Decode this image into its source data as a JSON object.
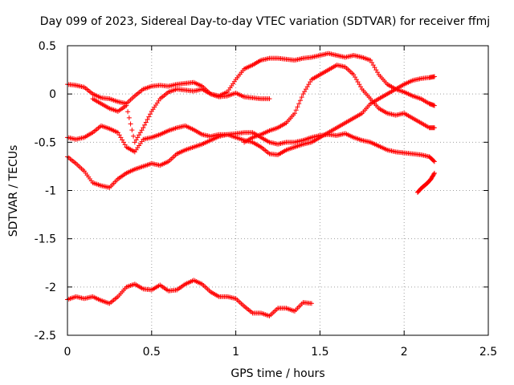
{
  "chart_data": {
    "type": "scatter",
    "title": "Day 099 of 2023, Sidereal Day-to-day VTEC variation (SDTVAR) for receiver ffmj",
    "xlabel": "GPS time / hours",
    "ylabel": "SDTVAR / TECUs",
    "xlim": [
      0,
      2.5
    ],
    "ylim": [
      -2.5,
      0.5
    ],
    "xticks": [
      "0",
      "0.5",
      "1",
      "1.5",
      "2",
      "2.5"
    ],
    "xtick_values": [
      0,
      0.5,
      1,
      1.5,
      2,
      2.5
    ],
    "yticks": [
      "-2.5",
      "-2",
      "-1.5",
      "-1",
      "-0.5",
      "0",
      "0.5"
    ],
    "ytick_values": [
      -2.5,
      -2,
      -1.5,
      -1,
      -0.5,
      0,
      0.5
    ],
    "grid": true,
    "marker": "+",
    "color": "#ff0000",
    "series": [
      {
        "x": [
          0,
          0.05,
          0.1,
          0.15,
          0.2,
          0.25,
          0.3,
          0.35,
          0.4,
          0.45,
          0.5,
          0.55,
          0.6,
          0.65,
          0.7,
          0.75,
          0.8,
          0.85,
          0.9,
          0.95,
          1.0,
          1.05,
          1.1,
          1.15,
          1.2
        ],
        "y": [
          0.1,
          0.09,
          0.07,
          0.0,
          -0.04,
          -0.05,
          -0.08,
          -0.1,
          -0.02,
          0.05,
          0.08,
          0.09,
          0.08,
          0.1,
          0.11,
          0.12,
          0.08,
          0.0,
          -0.03,
          -0.02,
          0.01,
          -0.03,
          -0.04,
          -0.05,
          -0.05
        ]
      },
      {
        "x": [
          0.15,
          0.2,
          0.25,
          0.3,
          0.35,
          0.4,
          0.45,
          0.5,
          0.55,
          0.6,
          0.65,
          0.7,
          0.75,
          0.8,
          0.85,
          0.9,
          0.95,
          1.0,
          1.05,
          1.1,
          1.15,
          1.2,
          1.25,
          1.3,
          1.35,
          1.4,
          1.45,
          1.5,
          1.55,
          1.6,
          1.65,
          1.7,
          1.75,
          1.8,
          1.85,
          1.9,
          1.95,
          2.0,
          2.05,
          2.1,
          2.15,
          2.18
        ],
        "y": [
          -0.05,
          -0.1,
          -0.15,
          -0.18,
          -0.12,
          -0.5,
          -0.35,
          -0.18,
          -0.05,
          0.02,
          0.05,
          0.04,
          0.03,
          0.05,
          0.0,
          -0.02,
          0.02,
          0.15,
          0.26,
          0.3,
          0.35,
          0.37,
          0.37,
          0.36,
          0.35,
          0.37,
          0.38,
          0.4,
          0.42,
          0.4,
          0.38,
          0.4,
          0.38,
          0.35,
          0.2,
          0.1,
          0.05,
          0.02,
          -0.02,
          -0.05,
          -0.1,
          -0.12
        ]
      },
      {
        "x": [
          0,
          0.05,
          0.1,
          0.15,
          0.2,
          0.25,
          0.3,
          0.35,
          0.4,
          0.45,
          0.5,
          0.55,
          0.6,
          0.65,
          0.7,
          0.75,
          0.8,
          0.85,
          0.9,
          0.95,
          1.0,
          1.05,
          1.1,
          1.15,
          1.2,
          1.25,
          1.3,
          1.35,
          1.4,
          1.45,
          1.5,
          1.55,
          1.6,
          1.65,
          1.7,
          1.75,
          1.8,
          1.85,
          1.9,
          1.95,
          2.0,
          2.05,
          2.1,
          2.15,
          2.18
        ],
        "y": [
          -0.45,
          -0.47,
          -0.45,
          -0.4,
          -0.33,
          -0.36,
          -0.4,
          -0.55,
          -0.6,
          -0.47,
          -0.45,
          -0.42,
          -0.38,
          -0.35,
          -0.33,
          -0.37,
          -0.42,
          -0.44,
          -0.42,
          -0.42,
          -0.41,
          -0.4,
          -0.4,
          -0.45,
          -0.5,
          -0.52,
          -0.5,
          -0.5,
          -0.48,
          -0.45,
          -0.43,
          -0.42,
          -0.43,
          -0.41,
          -0.45,
          -0.48,
          -0.5,
          -0.54,
          -0.58,
          -0.6,
          -0.61,
          -0.62,
          -0.63,
          -0.65,
          -0.7
        ]
      },
      {
        "x": [
          0,
          0.05,
          0.1,
          0.15,
          0.2,
          0.25,
          0.3,
          0.35,
          0.4,
          0.45,
          0.5,
          0.55,
          0.6,
          0.65,
          0.7,
          0.75,
          0.8,
          0.85,
          0.9,
          0.95,
          1.0,
          1.05,
          1.1,
          1.15,
          1.2,
          1.25,
          1.3,
          1.35,
          1.4,
          1.45,
          1.5,
          1.55,
          1.6,
          1.65,
          1.7,
          1.75,
          1.8,
          1.85,
          1.9,
          1.95,
          2.0,
          2.05,
          2.1,
          2.15,
          2.18
        ],
        "y": [
          -0.65,
          -0.72,
          -0.8,
          -0.92,
          -0.95,
          -0.97,
          -0.88,
          -0.82,
          -0.78,
          -0.75,
          -0.72,
          -0.74,
          -0.7,
          -0.62,
          -0.58,
          -0.55,
          -0.52,
          -0.48,
          -0.44,
          -0.42,
          -0.45,
          -0.48,
          -0.5,
          -0.55,
          -0.62,
          -0.63,
          -0.58,
          -0.55,
          -0.52,
          -0.5,
          -0.45,
          -0.4,
          -0.35,
          -0.3,
          -0.25,
          -0.2,
          -0.1,
          -0.05,
          0.0,
          0.05,
          0.1,
          0.14,
          0.16,
          0.17,
          0.18
        ]
      },
      {
        "x": [
          1.05,
          1.1,
          1.15,
          1.2,
          1.25,
          1.3,
          1.35,
          1.4,
          1.45,
          1.5,
          1.55,
          1.6,
          1.65,
          1.7,
          1.75,
          1.8,
          1.85,
          1.9,
          1.95,
          2.0,
          2.05,
          2.1,
          2.15,
          2.18
        ],
        "y": [
          -0.5,
          -0.45,
          -0.42,
          -0.38,
          -0.35,
          -0.3,
          -0.2,
          0.0,
          0.15,
          0.2,
          0.25,
          0.3,
          0.28,
          0.2,
          0.05,
          -0.05,
          -0.15,
          -0.2,
          -0.22,
          -0.2,
          -0.25,
          -0.3,
          -0.35,
          -0.35
        ]
      },
      {
        "x": [
          2.08,
          2.1,
          2.12,
          2.14,
          2.16,
          2.18
        ],
        "y": [
          -1.02,
          -0.98,
          -0.95,
          -0.92,
          -0.88,
          -0.82
        ]
      },
      {
        "x": [
          0,
          0.05,
          0.1,
          0.15,
          0.2,
          0.25,
          0.3,
          0.35,
          0.4,
          0.45,
          0.5,
          0.55,
          0.6,
          0.65,
          0.7,
          0.75,
          0.8,
          0.85,
          0.9,
          0.95,
          1.0,
          1.05,
          1.1,
          1.15,
          1.2,
          1.25,
          1.3,
          1.35,
          1.4,
          1.45
        ],
        "y": [
          -2.13,
          -2.1,
          -2.12,
          -2.1,
          -2.14,
          -2.17,
          -2.1,
          -2.0,
          -1.97,
          -2.02,
          -2.03,
          -1.98,
          -2.04,
          -2.03,
          -1.97,
          -1.93,
          -1.97,
          -2.05,
          -2.1,
          -2.1,
          -2.12,
          -2.2,
          -2.27,
          -2.27,
          -2.3,
          -2.22,
          -2.22,
          -2.25,
          -2.16,
          -2.17
        ]
      }
    ]
  }
}
